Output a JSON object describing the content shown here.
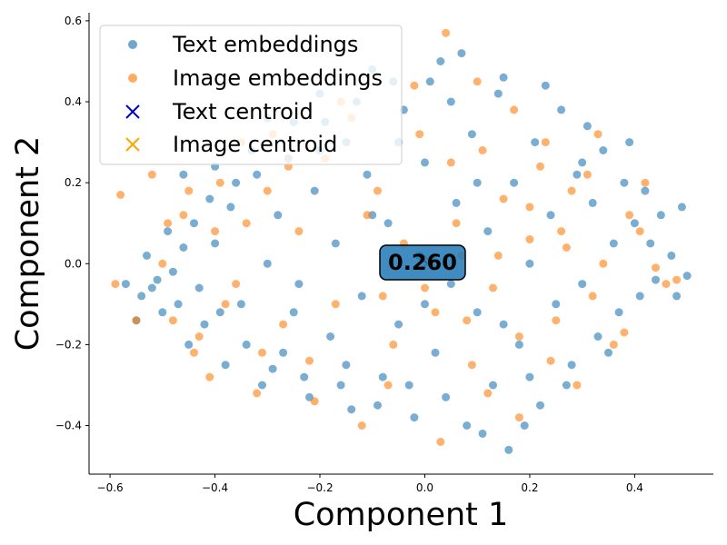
{
  "chart_data": {
    "type": "scatter",
    "xlabel": "Component 1",
    "ylabel": "Component 2",
    "xlim": [
      -0.64,
      0.55
    ],
    "ylim": [
      -0.52,
      0.62
    ],
    "x_ticks": [
      -0.6,
      -0.4,
      -0.2,
      0.0,
      0.2,
      0.4
    ],
    "y_ticks": [
      -0.4,
      -0.2,
      0.0,
      0.2,
      0.4,
      0.6
    ],
    "x_tick_labels": [
      "−0.6",
      "−0.4",
      "−0.2",
      "0.0",
      "0.2",
      "0.4"
    ],
    "y_tick_labels": [
      "−0.4",
      "−0.2",
      "0.0",
      "0.2",
      "0.4",
      "0.6"
    ],
    "grid": false,
    "legend_position": "upper-left",
    "annotation": "0.260",
    "series": [
      {
        "name": "Text embeddings",
        "marker": "circle",
        "color": "#1f77b4",
        "points": [
          [
            -0.57,
            -0.05
          ],
          [
            -0.55,
            -0.14
          ],
          [
            -0.52,
            -0.06
          ],
          [
            -0.5,
            -0.12
          ],
          [
            -0.48,
            -0.02
          ],
          [
            -0.45,
            -0.2
          ],
          [
            -0.44,
            0.1
          ],
          [
            -0.42,
            -0.15
          ],
          [
            -0.4,
            0.05
          ],
          [
            -0.38,
            -0.25
          ],
          [
            -0.36,
            0.2
          ],
          [
            -0.35,
            -0.1
          ],
          [
            -0.33,
            0.28
          ],
          [
            -0.31,
            -0.3
          ],
          [
            -0.3,
            0.0
          ],
          [
            -0.28,
            0.12
          ],
          [
            -0.27,
            -0.22
          ],
          [
            -0.25,
            0.35
          ],
          [
            -0.24,
            -0.05
          ],
          [
            -0.22,
            -0.33
          ],
          [
            -0.21,
            0.18
          ],
          [
            -0.2,
            0.42
          ],
          [
            -0.18,
            -0.18
          ],
          [
            -0.17,
            0.05
          ],
          [
            -0.15,
            0.3
          ],
          [
            -0.14,
            -0.36
          ],
          [
            -0.12,
            -0.08
          ],
          [
            -0.11,
            0.22
          ],
          [
            -0.1,
            0.48
          ],
          [
            -0.08,
            -0.28
          ],
          [
            -0.07,
            0.1
          ],
          [
            -0.05,
            -0.15
          ],
          [
            -0.04,
            0.38
          ],
          [
            -0.02,
            -0.38
          ],
          [
            -0.01,
            0.02
          ],
          [
            0.0,
            0.25
          ],
          [
            0.02,
            -0.22
          ],
          [
            0.03,
            0.5
          ],
          [
            0.05,
            -0.05
          ],
          [
            0.06,
            0.15
          ],
          [
            0.08,
            -0.4
          ],
          [
            0.09,
            0.32
          ],
          [
            0.1,
            -0.12
          ],
          [
            0.12,
            0.08
          ],
          [
            0.13,
            -0.3
          ],
          [
            0.14,
            0.42
          ],
          [
            0.16,
            -0.46
          ],
          [
            0.17,
            0.2
          ],
          [
            0.18,
            -0.2
          ],
          [
            0.2,
            0.0
          ],
          [
            0.21,
            0.3
          ],
          [
            0.22,
            -0.35
          ],
          [
            0.24,
            0.12
          ],
          [
            0.25,
            -0.1
          ],
          [
            0.26,
            0.38
          ],
          [
            0.28,
            -0.25
          ],
          [
            0.29,
            0.22
          ],
          [
            0.3,
            -0.05
          ],
          [
            0.32,
            0.15
          ],
          [
            0.33,
            -0.18
          ],
          [
            0.34,
            0.28
          ],
          [
            0.36,
            0.05
          ],
          [
            0.37,
            -0.12
          ],
          [
            0.38,
            0.2
          ],
          [
            0.4,
            0.1
          ],
          [
            0.41,
            -0.08
          ],
          [
            0.42,
            0.18
          ],
          [
            0.44,
            -0.04
          ],
          [
            0.45,
            0.12
          ],
          [
            0.47,
            0.02
          ],
          [
            0.49,
            0.14
          ],
          [
            0.5,
            -0.03
          ],
          [
            0.48,
            -0.08
          ],
          [
            0.43,
            0.05
          ],
          [
            0.39,
            0.3
          ],
          [
            0.35,
            -0.22
          ],
          [
            0.31,
            0.34
          ],
          [
            0.27,
            -0.3
          ],
          [
            0.23,
            0.44
          ],
          [
            0.19,
            -0.4
          ],
          [
            0.15,
            0.46
          ],
          [
            0.11,
            -0.42
          ],
          [
            0.07,
            0.52
          ],
          [
            0.04,
            -0.33
          ],
          [
            0.01,
            0.45
          ],
          [
            -0.03,
            -0.3
          ],
          [
            -0.06,
            0.45
          ],
          [
            -0.09,
            -0.35
          ],
          [
            -0.13,
            0.4
          ],
          [
            -0.16,
            -0.3
          ],
          [
            -0.19,
            0.35
          ],
          [
            -0.23,
            -0.28
          ],
          [
            -0.26,
            0.26
          ],
          [
            -0.29,
            -0.26
          ],
          [
            -0.32,
            0.22
          ],
          [
            -0.34,
            -0.2
          ],
          [
            -0.37,
            0.14
          ],
          [
            -0.39,
            -0.12
          ],
          [
            -0.41,
            0.16
          ],
          [
            -0.43,
            -0.06
          ],
          [
            -0.46,
            0.04
          ],
          [
            -0.47,
            -0.1
          ],
          [
            -0.49,
            0.08
          ],
          [
            -0.51,
            -0.04
          ],
          [
            -0.53,
            0.02
          ],
          [
            -0.54,
            -0.08
          ],
          [
            -0.46,
            0.22
          ],
          [
            -0.4,
            0.24
          ],
          [
            -0.3,
            0.36
          ],
          [
            -0.2,
            0.28
          ],
          [
            -0.1,
            0.12
          ],
          [
            0.0,
            -0.1
          ],
          [
            0.1,
            0.2
          ],
          [
            0.2,
            -0.28
          ],
          [
            0.3,
            0.25
          ],
          [
            -0.25,
            -0.12
          ],
          [
            0.15,
            -0.15
          ],
          [
            -0.05,
            0.3
          ],
          [
            0.05,
            0.4
          ],
          [
            -0.15,
            -0.25
          ]
        ]
      },
      {
        "name": "Image embeddings",
        "marker": "circle",
        "color": "#ff7f0e",
        "points": [
          [
            -0.59,
            -0.05
          ],
          [
            -0.58,
            0.17
          ],
          [
            -0.55,
            -0.14
          ],
          [
            -0.52,
            0.22
          ],
          [
            -0.5,
            0.0
          ],
          [
            -0.48,
            -0.14
          ],
          [
            -0.46,
            0.12
          ],
          [
            -0.43,
            -0.18
          ],
          [
            -0.41,
            -0.28
          ],
          [
            -0.39,
            0.2
          ],
          [
            -0.36,
            -0.05
          ],
          [
            -0.34,
            0.1
          ],
          [
            -0.32,
            -0.32
          ],
          [
            -0.29,
            0.32
          ],
          [
            -0.27,
            -0.15
          ],
          [
            -0.24,
            0.08
          ],
          [
            -0.22,
            -0.24
          ],
          [
            -0.19,
            0.26
          ],
          [
            -0.17,
            -0.1
          ],
          [
            -0.14,
            0.36
          ],
          [
            -0.12,
            -0.4
          ],
          [
            -0.09,
            0.18
          ],
          [
            -0.06,
            -0.2
          ],
          [
            -0.04,
            0.05
          ],
          [
            -0.01,
            0.32
          ],
          [
            0.02,
            -0.12
          ],
          [
            0.04,
            0.57
          ],
          [
            0.06,
            0.1
          ],
          [
            0.09,
            -0.25
          ],
          [
            0.11,
            0.28
          ],
          [
            0.13,
            -0.06
          ],
          [
            0.15,
            0.16
          ],
          [
            0.18,
            -0.38
          ],
          [
            0.2,
            0.06
          ],
          [
            0.22,
            0.24
          ],
          [
            0.25,
            -0.14
          ],
          [
            0.27,
            0.04
          ],
          [
            0.29,
            -0.3
          ],
          [
            0.31,
            0.22
          ],
          [
            0.34,
            0.0
          ],
          [
            0.36,
            -0.2
          ],
          [
            0.38,
            -0.17
          ],
          [
            0.41,
            0.08
          ],
          [
            0.44,
            -0.01
          ],
          [
            0.46,
            -0.05
          ],
          [
            0.48,
            -0.04
          ],
          [
            0.42,
            0.2
          ],
          [
            0.39,
            0.12
          ],
          [
            0.33,
            0.32
          ],
          [
            0.28,
            0.18
          ],
          [
            0.23,
            0.3
          ],
          [
            0.17,
            0.38
          ],
          [
            0.12,
            -0.32
          ],
          [
            0.07,
            0.02
          ],
          [
            0.03,
            -0.44
          ],
          [
            -0.02,
            0.44
          ],
          [
            -0.07,
            -0.3
          ],
          [
            -0.11,
            0.12
          ],
          [
            -0.16,
            0.4
          ],
          [
            -0.21,
            -0.34
          ],
          [
            -0.26,
            0.24
          ],
          [
            -0.31,
            -0.22
          ],
          [
            -0.35,
            0.3
          ],
          [
            -0.4,
            0.08
          ],
          [
            -0.44,
            -0.22
          ],
          [
            -0.49,
            0.1
          ],
          [
            -0.45,
            0.18
          ],
          [
            -0.38,
            -0.1
          ],
          [
            -0.3,
            0.18
          ],
          [
            0.1,
            0.45
          ],
          [
            0.05,
            0.25
          ],
          [
            0.0,
            -0.06
          ],
          [
            0.2,
            0.14
          ],
          [
            0.26,
            0.08
          ],
          [
            0.18,
            -0.18
          ],
          [
            0.14,
            0.02
          ],
          [
            -0.08,
            -0.08
          ],
          [
            0.08,
            -0.14
          ],
          [
            0.24,
            -0.24
          ],
          [
            0.32,
            -0.08
          ]
        ]
      }
    ],
    "centroids": [
      {
        "name": "Text centroid",
        "marker": "x",
        "color": "#0000cc",
        "x": 0.005,
        "y": 0.0
      },
      {
        "name": "Image centroid",
        "marker": "x",
        "color": "#ffa500",
        "x": 0.01,
        "y": 0.005
      }
    ]
  }
}
